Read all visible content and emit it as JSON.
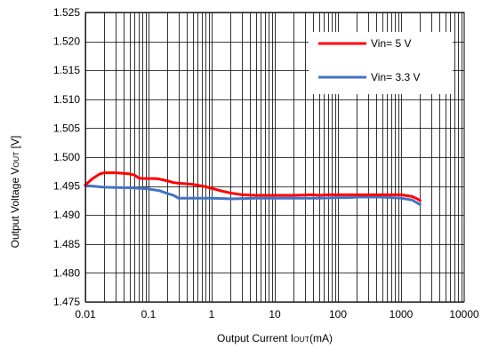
{
  "chart_data": {
    "type": "line",
    "xscale": "log",
    "xlim": [
      0.01,
      10000
    ],
    "ylim": [
      1.475,
      1.525
    ],
    "grid": true,
    "legend_position": "top-right",
    "xlabel": {
      "main": "Output Current I",
      "sub": "OUT",
      "suffix": "(mA)"
    },
    "ylabel": {
      "main": "Output Voltage V",
      "sub": "OUT",
      "suffix": " [V]"
    },
    "x_ticks": [
      0.01,
      0.1,
      1,
      10,
      100,
      1000,
      10000
    ],
    "x_tick_labels": [
      "0.01",
      "0.1",
      "1",
      "10",
      "100",
      "1000",
      "10000"
    ],
    "y_ticks": [
      1.475,
      1.48,
      1.485,
      1.49,
      1.495,
      1.5,
      1.505,
      1.51,
      1.515,
      1.52,
      1.525
    ],
    "y_tick_labels": [
      "1.475",
      "1.480",
      "1.485",
      "1.490",
      "1.495",
      "1.500",
      "1.505",
      "1.510",
      "1.515",
      "1.520",
      "1.525"
    ],
    "series": [
      {
        "name": "Vin= 5 V",
        "color": "#ff0000",
        "points": [
          [
            0.01,
            1.4952
          ],
          [
            0.013,
            1.4963
          ],
          [
            0.017,
            1.4971
          ],
          [
            0.02,
            1.4973
          ],
          [
            0.03,
            1.4973
          ],
          [
            0.04,
            1.4972
          ],
          [
            0.05,
            1.4971
          ],
          [
            0.06,
            1.4969
          ],
          [
            0.07,
            1.4964
          ],
          [
            0.08,
            1.4963
          ],
          [
            0.1,
            1.4963
          ],
          [
            0.13,
            1.4963
          ],
          [
            0.15,
            1.4962
          ],
          [
            0.2,
            1.4959
          ],
          [
            0.25,
            1.4956
          ],
          [
            0.3,
            1.4955
          ],
          [
            0.5,
            1.4953
          ],
          [
            0.8,
            1.4949
          ],
          [
            1,
            1.4946
          ],
          [
            1.5,
            1.4941
          ],
          [
            2,
            1.4938
          ],
          [
            3,
            1.4935
          ],
          [
            5,
            1.4934
          ],
          [
            10,
            1.4934
          ],
          [
            20,
            1.4934
          ],
          [
            40,
            1.4935
          ],
          [
            50,
            1.4934
          ],
          [
            70,
            1.4935
          ],
          [
            100,
            1.4935
          ],
          [
            150,
            1.4935
          ],
          [
            200,
            1.4935
          ],
          [
            400,
            1.4935
          ],
          [
            700,
            1.4935
          ],
          [
            1000,
            1.4935
          ],
          [
            1500,
            1.4932
          ],
          [
            1800,
            1.4928
          ],
          [
            2000,
            1.4925
          ]
        ]
      },
      {
        "name": "Vin= 3.3 V",
        "color": "#4472c4",
        "points": [
          [
            0.01,
            1.4951
          ],
          [
            0.02,
            1.4948
          ],
          [
            0.05,
            1.4947
          ],
          [
            0.08,
            1.4946
          ],
          [
            0.1,
            1.4945
          ],
          [
            0.15,
            1.4942
          ],
          [
            0.2,
            1.4937
          ],
          [
            0.25,
            1.4934
          ],
          [
            0.3,
            1.4929
          ],
          [
            0.5,
            1.4929
          ],
          [
            1,
            1.4929
          ],
          [
            2,
            1.4928
          ],
          [
            5,
            1.4929
          ],
          [
            10,
            1.4929
          ],
          [
            20,
            1.4929
          ],
          [
            50,
            1.4929
          ],
          [
            100,
            1.493
          ],
          [
            150,
            1.493
          ],
          [
            200,
            1.4931
          ],
          [
            500,
            1.4931
          ],
          [
            1000,
            1.4929
          ],
          [
            1500,
            1.4926
          ],
          [
            2000,
            1.4918
          ]
        ]
      }
    ]
  }
}
